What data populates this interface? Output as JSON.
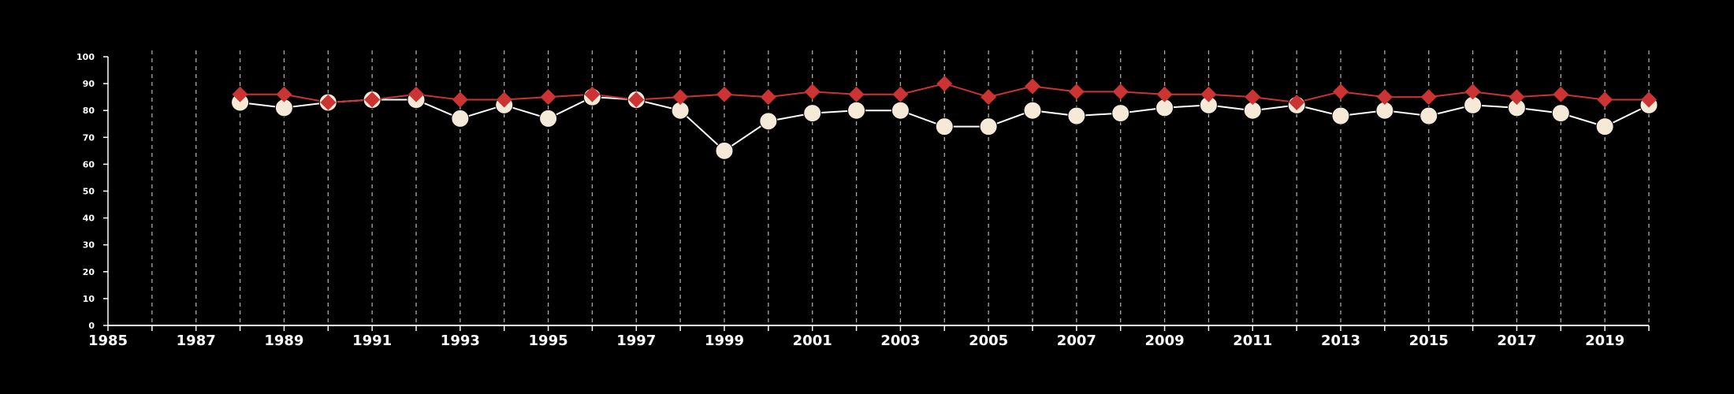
{
  "chart_data": {
    "type": "line",
    "x": [
      1988,
      1989,
      1990,
      1991,
      1992,
      1993,
      1994,
      1995,
      1996,
      1997,
      1998,
      1999,
      2000,
      2001,
      2002,
      2003,
      2004,
      2005,
      2006,
      2007,
      2008,
      2009,
      2010,
      2011,
      2012,
      2013,
      2014,
      2015,
      2016,
      2017,
      2018,
      2019,
      2020
    ],
    "series": [
      {
        "marker": "diamond",
        "color": "#cc3333",
        "values": [
          86,
          86,
          83,
          84,
          86,
          84,
          84,
          85,
          86,
          84,
          85,
          86,
          85,
          87,
          86,
          86,
          90,
          85,
          89,
          87,
          87,
          86,
          86,
          85,
          83,
          87,
          85,
          85,
          87,
          85,
          86,
          84,
          84
        ]
      },
      {
        "marker": "circle",
        "color": "#f5ead8",
        "line_color": "#ffffff",
        "values": [
          83,
          81,
          83,
          84,
          84,
          77,
          82,
          77,
          85,
          84,
          80,
          65,
          76,
          79,
          80,
          80,
          74,
          74,
          80,
          78,
          79,
          81,
          82,
          80,
          82,
          78,
          80,
          78,
          82,
          81,
          79,
          74,
          82
        ]
      }
    ],
    "xlim": [
      1985,
      2020
    ],
    "ylim": [
      0,
      100
    ],
    "x_ticks": [
      1985,
      1987,
      1989,
      1991,
      1993,
      1995,
      1997,
      1999,
      2001,
      2003,
      2005,
      2007,
      2009,
      2011,
      2013,
      2015,
      2017,
      2019
    ],
    "y_ticks": [
      0,
      10,
      20,
      30,
      40,
      50,
      60,
      70,
      80,
      90,
      100
    ],
    "vertical_grid": true,
    "grid_style": "dashed",
    "legend": "none",
    "title": "",
    "xlabel": "",
    "ylabel": ""
  }
}
